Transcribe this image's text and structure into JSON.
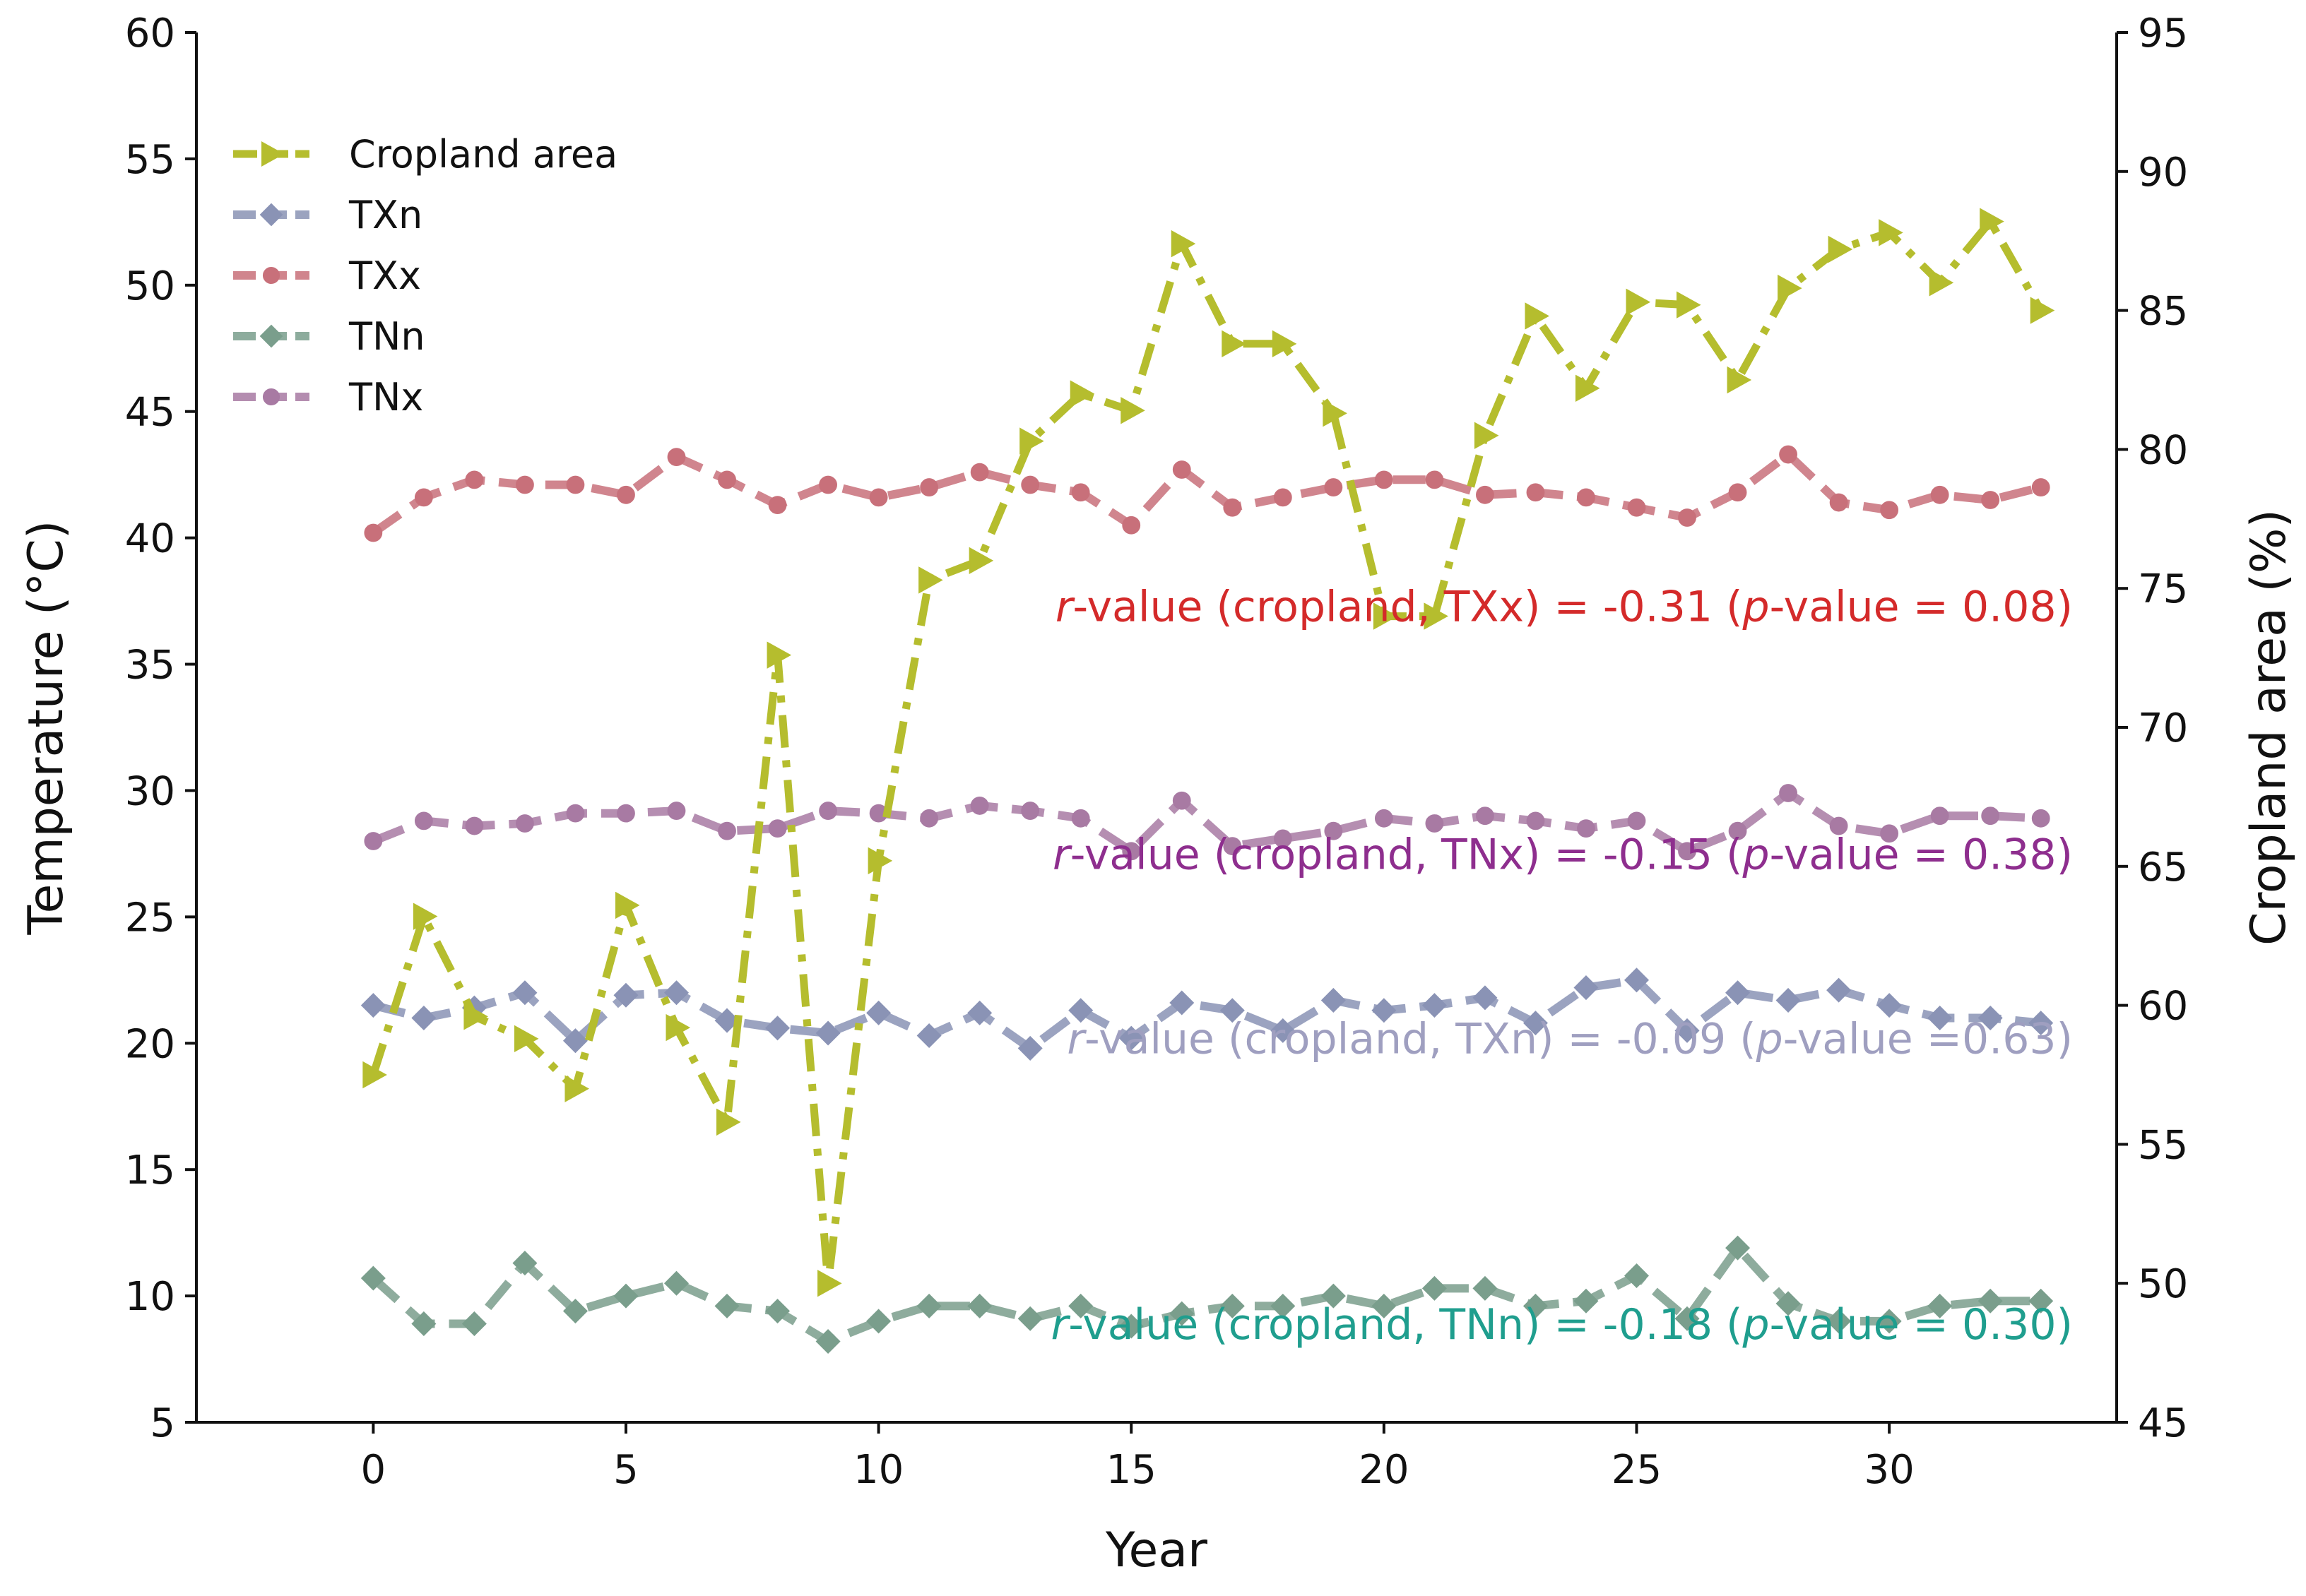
{
  "chart_data": {
    "type": "line",
    "xlabel": "Year",
    "ylabel_left": "Temperature (°C)",
    "ylabel_right": "Cropland area (%)",
    "xlim": [
      -3.5,
      34.5
    ],
    "ylim_left": [
      5,
      60
    ],
    "ylim_right": [
      45,
      95
    ],
    "x_ticks": [
      0,
      5,
      10,
      15,
      20,
      25,
      30
    ],
    "y_ticks_left": [
      5,
      10,
      15,
      20,
      25,
      30,
      35,
      40,
      45,
      50,
      55,
      60
    ],
    "y_ticks_right": [
      45,
      50,
      55,
      60,
      65,
      70,
      75,
      80,
      85,
      90,
      95
    ],
    "legend_position": "upper-left",
    "series": [
      {
        "name": "Cropland area",
        "axis": "right",
        "color": "#b5bd2e",
        "marker": "triangle-right",
        "linestyle": "dashdot",
        "x": [
          0,
          1,
          2,
          3,
          4,
          5,
          6,
          7,
          8,
          9,
          10,
          11,
          12,
          13,
          14,
          15,
          16,
          17,
          18,
          19,
          20,
          21,
          22,
          23,
          24,
          25,
          26,
          27,
          28,
          29,
          30,
          31,
          32,
          33
        ],
        "values": [
          57.5,
          63.2,
          59.6,
          58.8,
          57.0,
          63.6,
          59.2,
          55.8,
          72.6,
          50.0,
          65.2,
          75.3,
          76.0,
          80.3,
          82.0,
          81.4,
          87.4,
          83.8,
          83.8,
          81.3,
          74.0,
          74.0,
          80.5,
          84.8,
          82.2,
          85.3,
          85.2,
          82.5,
          85.8,
          87.2,
          87.8,
          86.0,
          88.2,
          85.0
        ]
      },
      {
        "name": "TXn",
        "axis": "left",
        "color": "#8a93b5",
        "marker": "diamond",
        "linestyle": "dashed",
        "x": [
          0,
          1,
          2,
          3,
          4,
          5,
          6,
          7,
          8,
          9,
          10,
          11,
          12,
          13,
          14,
          15,
          16,
          17,
          18,
          19,
          20,
          21,
          22,
          23,
          24,
          25,
          26,
          27,
          28,
          29,
          30,
          31,
          32,
          33
        ],
        "values": [
          21.5,
          21.0,
          21.4,
          22.0,
          20.1,
          21.9,
          22.0,
          20.9,
          20.6,
          20.4,
          21.2,
          20.3,
          21.2,
          19.8,
          21.3,
          20.2,
          21.6,
          21.3,
          20.5,
          21.7,
          21.3,
          21.5,
          21.8,
          20.8,
          22.2,
          22.5,
          20.5,
          22.0,
          21.7,
          22.1,
          21.5,
          21.0,
          21.0,
          20.8
        ]
      },
      {
        "name": "TXx",
        "axis": "left",
        "color": "#c8707a",
        "marker": "circle",
        "linestyle": "dashed",
        "x": [
          0,
          1,
          2,
          3,
          4,
          5,
          6,
          7,
          8,
          9,
          10,
          11,
          12,
          13,
          14,
          15,
          16,
          17,
          18,
          19,
          20,
          21,
          22,
          23,
          24,
          25,
          26,
          27,
          28,
          29,
          30,
          31,
          32,
          33
        ],
        "values": [
          40.2,
          41.6,
          42.3,
          42.1,
          42.1,
          41.7,
          43.2,
          42.3,
          41.3,
          42.1,
          41.6,
          42.0,
          42.6,
          42.1,
          41.8,
          40.5,
          42.7,
          41.2,
          41.6,
          42.0,
          42.3,
          42.3,
          41.7,
          41.8,
          41.6,
          41.2,
          40.8,
          41.8,
          43.3,
          41.4,
          41.1,
          41.7,
          41.5,
          42.0
        ]
      },
      {
        "name": "TNn",
        "axis": "left",
        "color": "#7a9e8c",
        "marker": "diamond",
        "linestyle": "dashed",
        "x": [
          0,
          1,
          2,
          3,
          4,
          5,
          6,
          7,
          8,
          9,
          10,
          11,
          12,
          13,
          14,
          15,
          16,
          17,
          18,
          19,
          20,
          21,
          22,
          23,
          24,
          25,
          26,
          27,
          28,
          29,
          30,
          31,
          32,
          33
        ],
        "values": [
          10.7,
          8.9,
          8.9,
          11.3,
          9.4,
          10.0,
          10.5,
          9.6,
          9.4,
          8.2,
          9.0,
          9.6,
          9.6,
          9.1,
          9.6,
          8.8,
          9.3,
          9.6,
          9.6,
          10.0,
          9.6,
          10.3,
          10.3,
          9.6,
          9.8,
          10.8,
          9.1,
          11.9,
          9.7,
          9.0,
          9.0,
          9.6,
          9.8,
          9.8
        ]
      },
      {
        "name": "TNx",
        "axis": "left",
        "color": "#a87aa3",
        "marker": "circle",
        "linestyle": "dashed",
        "x": [
          0,
          1,
          2,
          3,
          4,
          5,
          6,
          7,
          8,
          9,
          10,
          11,
          12,
          13,
          14,
          15,
          16,
          17,
          18,
          19,
          20,
          21,
          22,
          23,
          24,
          25,
          26,
          27,
          28,
          29,
          30,
          31,
          32,
          33
        ],
        "values": [
          28.0,
          28.8,
          28.6,
          28.7,
          29.1,
          29.1,
          29.2,
          28.4,
          28.5,
          29.2,
          29.1,
          28.9,
          29.4,
          29.2,
          28.9,
          27.6,
          29.6,
          27.8,
          28.1,
          28.4,
          28.9,
          28.7,
          29.0,
          28.8,
          28.5,
          28.8,
          27.6,
          28.4,
          29.9,
          28.6,
          28.3,
          29.0,
          29.0,
          28.9
        ]
      }
    ],
    "annotations": [
      {
        "key": "txx",
        "italic": "r",
        "text1": "-value (cropland, TXx) = -0.31 (",
        "italic2": "p",
        "text2": "-value = 0.08)",
        "color": "#d42a2a",
        "anchor_y": 36.7
      },
      {
        "key": "tnx",
        "italic": "r",
        "text1": "-value (cropland, TNx) = -0.15 (",
        "italic2": "p",
        "text2": "-value = 0.38)",
        "color": "#8e2e8e",
        "anchor_y": 26.9
      },
      {
        "key": "txn",
        "italic": "r",
        "text1": "-value (cropland, TXn) = -0.09 (",
        "italic2": "p",
        "text2": "-value =0.63)",
        "color": "#9f9fc0",
        "anchor_y": 19.6
      },
      {
        "key": "tnn",
        "italic": "r",
        "text1": "-value (cropland, TNn) = -0.18 (",
        "italic2": "p",
        "text2": "-value = 0.30)",
        "color": "#1f9e8e",
        "anchor_y": 8.3
      }
    ]
  }
}
